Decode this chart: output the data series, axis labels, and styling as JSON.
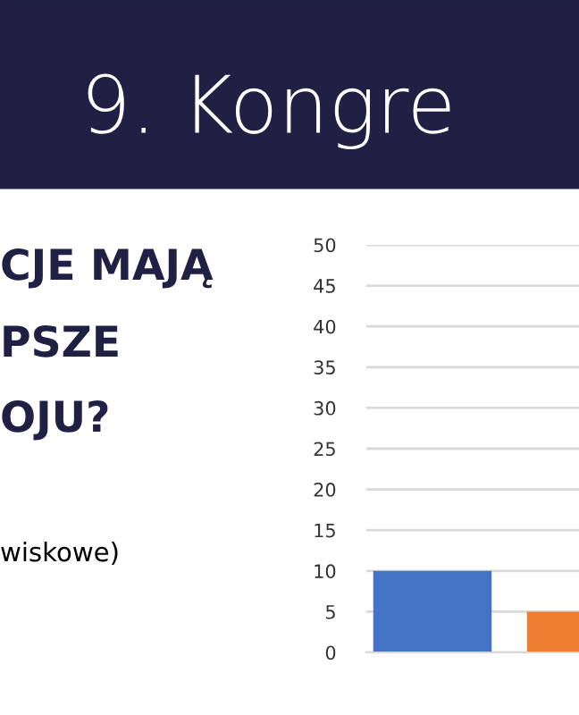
{
  "chart_data": {
    "type": "bar",
    "title": "9. Kongre",
    "annotations": [
      "CJE MAJĄ",
      "PSZE",
      "OJU?",
      "wiskowe)"
    ],
    "categories": [
      null,
      null
    ],
    "values": [
      10,
      5
    ],
    "colors": [
      "#4472c4",
      "#ed7d31"
    ],
    "ylim": [
      0,
      50
    ],
    "yticks": [
      0,
      5,
      10,
      15,
      20,
      25,
      30,
      35,
      40,
      45,
      50
    ],
    "grid": "y",
    "legend": false
  }
}
